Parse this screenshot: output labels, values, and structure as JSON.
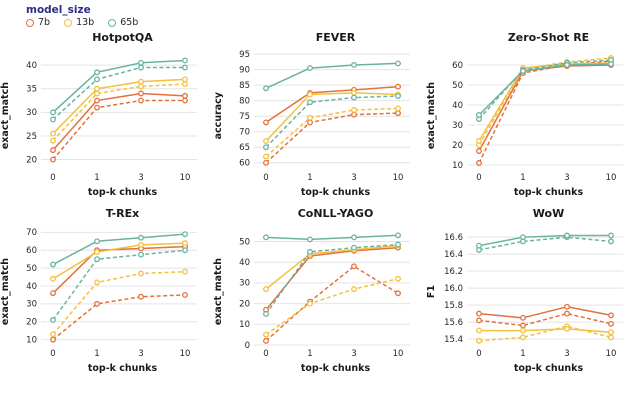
{
  "legend": {
    "title": "model_size",
    "title_color": "#2d2d86",
    "entries": [
      {
        "label": "7b"
      },
      {
        "label": "13b"
      },
      {
        "label": "65b"
      }
    ],
    "colors": {
      "7b": "#e2713d",
      "13b": "#f2c13e",
      "65b": "#69b2a2"
    }
  },
  "chart_data": [
    {
      "type": "line",
      "title": "HotpotQA",
      "xlabel": "top-k chunks",
      "ylabel": "exact_match",
      "categories": [
        "0",
        "1",
        "3",
        "10"
      ],
      "ylim": [
        18,
        43
      ],
      "yticks": [
        "20",
        "25",
        "30",
        "35",
        "40"
      ],
      "grid": "horizontal",
      "series": [
        {
          "name": "7b (dashed)",
          "model": "7b",
          "style": "dashed",
          "values": [
            20,
            31,
            32.5,
            32.5
          ]
        },
        {
          "name": "7b (solid)",
          "model": "7b",
          "style": "solid",
          "values": [
            22,
            32.5,
            34,
            33.5
          ]
        },
        {
          "name": "13b (dashed)",
          "model": "13b",
          "style": "dashed",
          "values": [
            24,
            34,
            35.5,
            36
          ]
        },
        {
          "name": "13b (solid)",
          "model": "13b",
          "style": "solid",
          "values": [
            25.5,
            35,
            36.5,
            37
          ]
        },
        {
          "name": "65b (dashed)",
          "model": "65b",
          "style": "dashed",
          "values": [
            28.5,
            37,
            39.5,
            39.5
          ]
        },
        {
          "name": "65b (solid)",
          "model": "65b",
          "style": "solid",
          "values": [
            30,
            38.5,
            40.5,
            41
          ]
        }
      ]
    },
    {
      "type": "line",
      "title": "FEVER",
      "xlabel": "top-k chunks",
      "ylabel": "accuracy",
      "categories": [
        "0",
        "1",
        "3",
        "10"
      ],
      "ylim": [
        58,
        96
      ],
      "yticks": [
        "60",
        "65",
        "70",
        "75",
        "80",
        "85",
        "90",
        "95"
      ],
      "grid": "horizontal",
      "series": [
        {
          "name": "7b (dashed)",
          "model": "7b",
          "style": "dashed",
          "values": [
            60,
            73,
            75.5,
            76
          ]
        },
        {
          "name": "7b (solid)",
          "model": "7b",
          "style": "solid",
          "values": [
            73,
            82.5,
            83.5,
            84.5
          ]
        },
        {
          "name": "13b (dashed)",
          "model": "13b",
          "style": "dashed",
          "values": [
            62,
            74.5,
            77,
            77.5
          ]
        },
        {
          "name": "13b (solid)",
          "model": "13b",
          "style": "solid",
          "values": [
            67,
            82,
            82.5,
            82
          ]
        },
        {
          "name": "65b (dashed)",
          "model": "65b",
          "style": "dashed",
          "values": [
            65,
            79.5,
            81,
            81.5
          ]
        },
        {
          "name": "65b (solid)",
          "model": "65b",
          "style": "solid",
          "values": [
            84,
            90.5,
            91.5,
            92
          ]
        }
      ]
    },
    {
      "type": "line",
      "title": "Zero-Shot RE",
      "xlabel": "top-k chunks",
      "ylabel": "exact_match",
      "categories": [
        "0",
        "1",
        "3",
        "10"
      ],
      "ylim": [
        8,
        67
      ],
      "yticks": [
        "10",
        "20",
        "30",
        "40",
        "50",
        "60"
      ],
      "grid": "horizontal",
      "series": [
        {
          "name": "7b (dashed)",
          "model": "7b",
          "style": "dashed",
          "values": [
            11,
            56,
            60,
            62
          ]
        },
        {
          "name": "7b (solid)",
          "model": "7b",
          "style": "solid",
          "values": [
            17,
            57,
            59.5,
            60
          ]
        },
        {
          "name": "13b (dashed)",
          "model": "13b",
          "style": "dashed",
          "values": [
            20,
            58,
            61.5,
            63.5
          ]
        },
        {
          "name": "13b (solid)",
          "model": "13b",
          "style": "solid",
          "values": [
            22,
            58.5,
            60.5,
            61
          ]
        },
        {
          "name": "65b (dashed)",
          "model": "65b",
          "style": "dashed",
          "values": [
            33,
            57.5,
            61,
            62.5
          ]
        },
        {
          "name": "65b (solid)",
          "model": "65b",
          "style": "solid",
          "values": [
            35,
            57,
            60,
            60.5
          ]
        }
      ]
    },
    {
      "type": "line",
      "title": "T-REx",
      "xlabel": "top-k chunks",
      "ylabel": "exact_match",
      "categories": [
        "0",
        "1",
        "3",
        "10"
      ],
      "ylim": [
        7,
        73
      ],
      "yticks": [
        "10",
        "20",
        "30",
        "40",
        "50",
        "60",
        "70"
      ],
      "grid": "horizontal",
      "series": [
        {
          "name": "7b (dashed)",
          "model": "7b",
          "style": "dashed",
          "values": [
            10,
            30,
            34,
            35
          ]
        },
        {
          "name": "7b (solid)",
          "model": "7b",
          "style": "solid",
          "values": [
            36,
            60,
            61,
            62
          ]
        },
        {
          "name": "13b (dashed)",
          "model": "13b",
          "style": "dashed",
          "values": [
            13,
            42,
            47,
            48
          ]
        },
        {
          "name": "13b (solid)",
          "model": "13b",
          "style": "solid",
          "values": [
            44,
            59,
            63,
            64
          ]
        },
        {
          "name": "65b (dashed)",
          "model": "65b",
          "style": "dashed",
          "values": [
            21,
            55,
            57.5,
            60
          ]
        },
        {
          "name": "65b (solid)",
          "model": "65b",
          "style": "solid",
          "values": [
            52,
            65,
            67,
            69
          ]
        }
      ]
    },
    {
      "type": "line",
      "title": "CoNLL-YAGO",
      "xlabel": "top-k chunks",
      "ylabel": "exact_match",
      "categories": [
        "0",
        "1",
        "3",
        "10"
      ],
      "ylim": [
        0,
        57
      ],
      "yticks": [
        "0",
        "10",
        "20",
        "30",
        "40",
        "50"
      ],
      "grid": "horizontal",
      "series": [
        {
          "name": "7b (dashed)",
          "model": "7b",
          "style": "dashed",
          "values": [
            2,
            21,
            38,
            25
          ]
        },
        {
          "name": "7b (solid)",
          "model": "7b",
          "style": "solid",
          "values": [
            17,
            43,
            45.5,
            47
          ]
        },
        {
          "name": "13b (dashed)",
          "model": "13b",
          "style": "dashed",
          "values": [
            5,
            20,
            27,
            32
          ]
        },
        {
          "name": "13b (solid)",
          "model": "13b",
          "style": "solid",
          "values": [
            27,
            44,
            46,
            48
          ]
        },
        {
          "name": "65b (dashed)",
          "model": "65b",
          "style": "dashed",
          "values": [
            15,
            45,
            47,
            48.5
          ]
        },
        {
          "name": "65b (solid)",
          "model": "65b",
          "style": "solid",
          "values": [
            52,
            51,
            52,
            53
          ]
        }
      ]
    },
    {
      "type": "line",
      "title": "WoW",
      "xlabel": "top-k chunks",
      "ylabel": "F1",
      "categories": [
        "0",
        "1",
        "3",
        "10"
      ],
      "ylim": [
        15.33,
        16.72
      ],
      "yticks": [
        "15.4",
        "15.6",
        "15.8",
        "16.0",
        "16.2",
        "16.4",
        "16.6"
      ],
      "grid": "horizontal",
      "series": [
        {
          "name": "7b (dashed)",
          "model": "7b",
          "style": "dashed",
          "values": [
            15.62,
            15.56,
            15.7,
            15.58
          ]
        },
        {
          "name": "7b (solid)",
          "model": "7b",
          "style": "solid",
          "values": [
            15.7,
            15.65,
            15.78,
            15.68
          ]
        },
        {
          "name": "13b (dashed)",
          "model": "13b",
          "style": "dashed",
          "values": [
            15.38,
            15.42,
            15.55,
            15.42
          ]
        },
        {
          "name": "13b (solid)",
          "model": "13b",
          "style": "solid",
          "values": [
            15.5,
            15.5,
            15.52,
            15.48
          ]
        },
        {
          "name": "65b (dashed)",
          "model": "65b",
          "style": "dashed",
          "values": [
            16.45,
            16.55,
            16.6,
            16.55
          ]
        },
        {
          "name": "65b (solid)",
          "model": "65b",
          "style": "solid",
          "values": [
            16.5,
            16.6,
            16.62,
            16.62
          ]
        }
      ]
    }
  ]
}
